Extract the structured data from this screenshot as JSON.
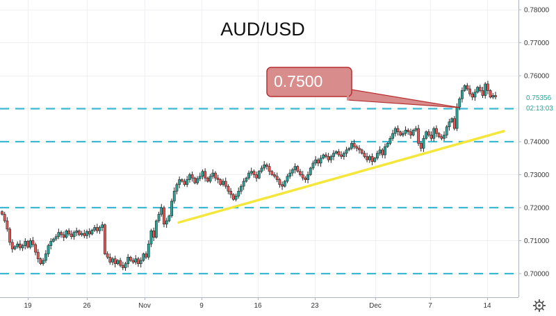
{
  "chart_data": {
    "type": "candlestick",
    "title": "AUD/USD",
    "xlabel": "",
    "ylabel": "",
    "ylim": [
      0.6965,
      0.7845
    ],
    "grid": true,
    "x_tick_labels": [
      "19",
      "26",
      "Nov",
      "9",
      "16",
      "23",
      "Dec",
      "7",
      "14"
    ],
    "y_tick_labels": [
      "0.78000",
      "0.77000",
      "0.76000",
      "0.75000",
      "0.74000",
      "0.73000",
      "0.72000",
      "0.71000",
      "0.70000"
    ],
    "y_ticks": [
      0.78,
      0.77,
      0.76,
      0.75,
      0.74,
      0.73,
      0.72,
      0.71,
      0.7
    ],
    "horizontal_levels": [
      0.75,
      0.74,
      0.72,
      0.7
    ],
    "last_price_label": "0.75356",
    "countdown_label": "02:13:03",
    "callout_text": "0.7500",
    "support_trendline": [
      [
        0.7155
      ],
      [
        0.7432
      ]
    ],
    "closes": [
      0.718,
      0.716,
      0.7135,
      0.7095,
      0.7075,
      0.7082,
      0.709,
      0.7078,
      0.7085,
      0.7098,
      0.708,
      0.71,
      0.7088,
      0.7065,
      0.7045,
      0.703,
      0.704,
      0.706,
      0.7085,
      0.7098,
      0.7105,
      0.7112,
      0.7125,
      0.7118,
      0.711,
      0.713,
      0.712,
      0.7112,
      0.7125,
      0.713,
      0.7118,
      0.7122,
      0.7115,
      0.7128,
      0.712,
      0.7132,
      0.714,
      0.713,
      0.714,
      0.7148,
      0.706,
      0.705,
      0.7035,
      0.7045,
      0.703,
      0.704,
      0.7025,
      0.7018,
      0.703,
      0.705,
      0.704,
      0.7035,
      0.7045,
      0.703,
      0.704,
      0.706,
      0.705,
      0.709,
      0.713,
      0.711,
      0.716,
      0.718,
      0.72,
      0.715,
      0.716,
      0.7175,
      0.722,
      0.725,
      0.727,
      0.7285,
      0.728,
      0.727,
      0.7285,
      0.73,
      0.729,
      0.7275,
      0.7288,
      0.7295,
      0.731,
      0.729,
      0.728,
      0.7295,
      0.7305,
      0.729,
      0.7285,
      0.727,
      0.728,
      0.7265,
      0.725,
      0.724,
      0.7225,
      0.7235,
      0.725,
      0.7265,
      0.728,
      0.729,
      0.7305,
      0.731,
      0.73,
      0.729,
      0.731,
      0.732,
      0.733,
      0.7325,
      0.731,
      0.73,
      0.7295,
      0.7285,
      0.727,
      0.7265,
      0.728,
      0.7295,
      0.7305,
      0.7315,
      0.7325,
      0.731,
      0.73,
      0.729,
      0.7285,
      0.73,
      0.732,
      0.7335,
      0.7345,
      0.7335,
      0.735,
      0.736,
      0.7355,
      0.7345,
      0.7355,
      0.7365,
      0.737,
      0.736,
      0.7355,
      0.7365,
      0.7375,
      0.738,
      0.7395,
      0.7385,
      0.738,
      0.7375,
      0.7365,
      0.7355,
      0.7345,
      0.7355,
      0.734,
      0.735,
      0.7365,
      0.7375,
      0.736,
      0.7385,
      0.7395,
      0.741,
      0.7425,
      0.744,
      0.743,
      0.742,
      0.7425,
      0.7435,
      0.743,
      0.742,
      0.7435,
      0.744,
      0.7395,
      0.738,
      0.741,
      0.743,
      0.742,
      0.741,
      0.744,
      0.7425,
      0.7415,
      0.741,
      0.742,
      0.7445,
      0.746,
      0.747,
      0.744,
      0.7505,
      0.753,
      0.7555,
      0.757,
      0.756,
      0.7545,
      0.7535,
      0.755,
      0.7565,
      0.7555,
      0.754,
      0.7575,
      0.7555,
      0.7535,
      0.754,
      0.7536
    ]
  }
}
